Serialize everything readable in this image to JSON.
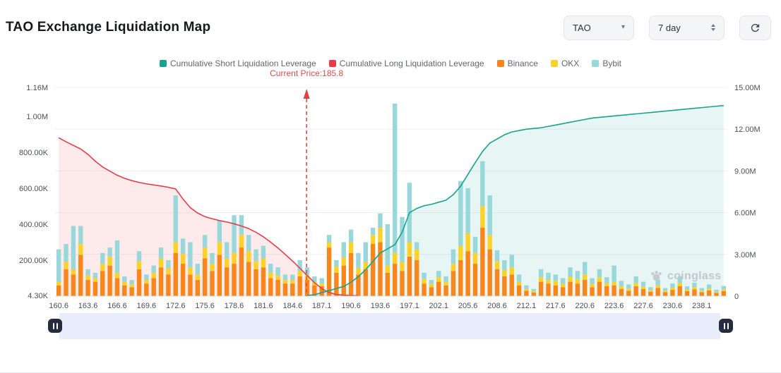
{
  "header": {
    "title": "TAO Exchange Liquidation Map"
  },
  "controls": {
    "symbol": "TAO",
    "period": "7 day"
  },
  "icons": {
    "caret_down": "▾"
  },
  "legend": [
    {
      "label": "Cumulative Short Liquidation Leverage",
      "color": "#17a38f"
    },
    {
      "label": "Cumulative Long Liquidation Leverage",
      "color": "#e93c47"
    },
    {
      "label": "Binance",
      "color": "#f8861b"
    },
    {
      "label": "OKX",
      "color": "#fcd228"
    },
    {
      "label": "Bybit",
      "color": "#98d7da"
    }
  ],
  "annotation": {
    "current_price_label": "Current Price:185.8",
    "current_price": 185.8,
    "color": "#d8504c",
    "line_color": "#e0403c"
  },
  "watermark": "coinglass",
  "chart_data": {
    "type": "bar",
    "title": "TAO Exchange Liquidation Map",
    "xlabel": "",
    "ylabel": "",
    "grid": true,
    "legend_position": "top",
    "x_tick_labels": [
      "160.6",
      "163.6",
      "166.6",
      "169.6",
      "172.6",
      "175.6",
      "178.6",
      "181.6",
      "184.6",
      "187.1",
      "190.6",
      "193.6",
      "197.1",
      "202.1",
      "205.6",
      "208.6",
      "212.1",
      "217.6",
      "220.6",
      "223.6",
      "227.6",
      "230.6",
      "238.1"
    ],
    "x_tick_every": 4,
    "bar_unit": "K",
    "bar_series": [
      {
        "name": "Binance",
        "color": "#f8861b",
        "values": [
          60,
          150,
          120,
          230,
          90,
          80,
          140,
          170,
          100,
          60,
          50,
          150,
          70,
          100,
          160,
          120,
          240,
          180,
          120,
          90,
          210,
          140,
          230,
          160,
          180,
          270,
          190,
          150,
          160,
          100,
          90,
          70,
          70,
          110,
          90,
          60,
          55,
          270,
          130,
          170,
          240,
          120,
          150,
          290,
          300,
          130,
          180,
          140,
          220,
          200,
          70,
          50,
          80,
          60,
          140,
          200,
          250,
          180,
          380,
          260,
          150,
          110,
          120,
          60,
          30,
          20,
          80,
          70,
          60,
          50,
          80,
          70,
          90,
          50,
          80,
          55,
          60,
          40,
          30,
          55,
          40,
          25,
          45,
          22,
          35,
          55,
          28,
          38,
          22,
          32,
          18,
          28
        ]
      },
      {
        "name": "OKX",
        "color": "#fcd228",
        "values": [
          20,
          40,
          30,
          60,
          25,
          20,
          40,
          50,
          30,
          20,
          15,
          45,
          20,
          30,
          50,
          35,
          60,
          55,
          40,
          30,
          60,
          40,
          70,
          50,
          60,
          70,
          60,
          45,
          50,
          30,
          25,
          20,
          20,
          30,
          25,
          18,
          15,
          30,
          35,
          45,
          60,
          35,
          40,
          50,
          80,
          40,
          60,
          50,
          80,
          60,
          25,
          18,
          25,
          20,
          40,
          80,
          100,
          60,
          120,
          80,
          45,
          35,
          40,
          20,
          10,
          8,
          25,
          20,
          25,
          18,
          28,
          25,
          30,
          18,
          25,
          18,
          20,
          15,
          12,
          18,
          13,
          8,
          15,
          8,
          12,
          18,
          9,
          13,
          8,
          11,
          6,
          10
        ]
      },
      {
        "name": "Bybit",
        "color": "#98d7da",
        "values": [
          180,
          100,
          240,
          100,
          35,
          30,
          60,
          50,
          180,
          30,
          25,
          55,
          30,
          40,
          60,
          45,
          260,
          85,
          140,
          60,
          70,
          60,
          120,
          90,
          210,
          110,
          90,
          65,
          70,
          50,
          45,
          30,
          30,
          60,
          45,
          32,
          30,
          40,
          35,
          85,
          70,
          85,
          110,
          40,
          80,
          230,
          830,
          250,
          330,
          40,
          35,
          22,
          35,
          30,
          80,
          360,
          250,
          90,
          250,
          220,
          60,
          55,
          70,
          40,
          20,
          12,
          45,
          40,
          35,
          32,
          52,
          45,
          70,
          32,
          45,
          32,
          90,
          30,
          23,
          37,
          27,
          17,
          30,
          15,
          23,
          37,
          18,
          24,
          15,
          22,
          12,
          18
        ]
      }
    ],
    "line_series": [
      {
        "name": "Cumulative Long Liquidation Leverage",
        "axis": "left",
        "unit": "K",
        "color": "#e93c47",
        "fill": "rgba(233,60,71,0.10)",
        "values": [
          880,
          858,
          838,
          818,
          788,
          750,
          718,
          695,
          672,
          655,
          642,
          632,
          624,
          618,
          612,
          605,
          596,
          540,
          492,
          462,
          442,
          430,
          420,
          412,
          402,
          390,
          375,
          355,
          330,
          300,
          268,
          232,
          195,
          155,
          115,
          75,
          42,
          20,
          9,
          5,
          3,
          2,
          null,
          null,
          null,
          null,
          null,
          null,
          null,
          null,
          null,
          null,
          null,
          null,
          null,
          null,
          null,
          null,
          null,
          null,
          null,
          null,
          null,
          null,
          null,
          null,
          null,
          null,
          null,
          null,
          null,
          null,
          null,
          null,
          null,
          null,
          null,
          null,
          null,
          null,
          null,
          null,
          null,
          null,
          null,
          null,
          null,
          null,
          null,
          null,
          null,
          null
        ]
      },
      {
        "name": "Cumulative Short Liquidation Leverage",
        "axis": "right",
        "unit": "M",
        "color": "#17a38f",
        "fill": "rgba(23,163,143,0.10)",
        "values": [
          null,
          null,
          null,
          null,
          null,
          null,
          null,
          null,
          null,
          null,
          null,
          null,
          null,
          null,
          null,
          null,
          null,
          null,
          null,
          null,
          null,
          null,
          null,
          null,
          null,
          null,
          null,
          null,
          null,
          null,
          null,
          null,
          null,
          null,
          0.05,
          0.1,
          0.25,
          0.4,
          0.55,
          0.7,
          1.0,
          1.4,
          1.9,
          2.5,
          3.1,
          3.4,
          3.7,
          4.6,
          6.0,
          6.3,
          6.5,
          6.6,
          6.75,
          6.9,
          7.3,
          7.9,
          8.75,
          9.6,
          10.4,
          11.0,
          11.3,
          11.6,
          11.8,
          11.9,
          12.0,
          12.05,
          12.1,
          12.2,
          12.3,
          12.4,
          12.5,
          12.6,
          12.7,
          12.8,
          12.85,
          12.9,
          12.95,
          13.0,
          13.05,
          13.1,
          13.15,
          13.2,
          13.25,
          13.3,
          13.35,
          13.4,
          13.45,
          13.5,
          13.55,
          13.6,
          13.65,
          13.7
        ]
      }
    ],
    "left_axis": {
      "labels": [
        "4.30K",
        "200.00K",
        "400.00K",
        "600.00K",
        "800.00K",
        "1.00M",
        "1.16M"
      ],
      "values": [
        4.3,
        200,
        400,
        600,
        800,
        1000,
        1160
      ],
      "unit": "K"
    },
    "right_axis": {
      "labels": [
        "0",
        "3.00M",
        "6.00M",
        "9.00M",
        "12.00M",
        "15.00M"
      ],
      "values": [
        0,
        3,
        6,
        9,
        12,
        15
      ],
      "unit": "M"
    }
  }
}
